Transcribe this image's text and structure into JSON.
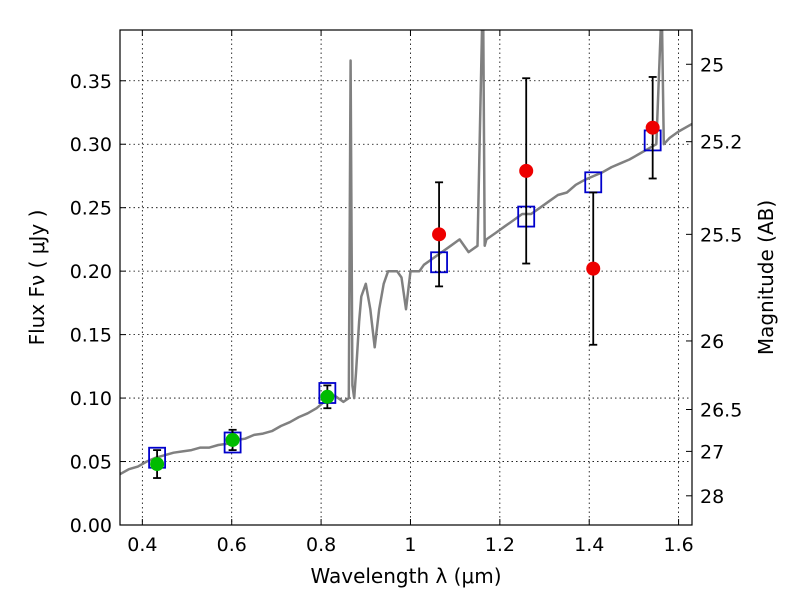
{
  "chart_data": {
    "type": "scatter",
    "xlabel": "Wavelength  λ (μm)",
    "ylabel": "Flux  Fν  ( μJy )",
    "y2label": "Magnitude (AB)",
    "xlim": [
      0.35,
      1.63
    ],
    "ylim": [
      0.0,
      0.39
    ],
    "grid": true,
    "x_ticks": [
      0.4,
      0.6,
      0.8,
      1.0,
      1.2,
      1.4,
      1.6
    ],
    "x_tick_labels": [
      "0.4",
      "0.6",
      "0.8",
      "1",
      "1.2",
      "1.4",
      "1.6"
    ],
    "y_ticks": [
      0.0,
      0.05,
      0.1,
      0.15,
      0.2,
      0.25,
      0.3,
      0.35
    ],
    "y_tick_labels": [
      "0.00",
      "0.05",
      "0.10",
      "0.15",
      "0.20",
      "0.25",
      "0.30",
      "0.35"
    ],
    "y2_ticks": [
      {
        "label": "25",
        "flux": 0.363
      },
      {
        "label": "25.2",
        "flux": 0.302
      },
      {
        "label": "25.5",
        "flux": 0.229
      },
      {
        "label": "26",
        "flux": 0.145
      },
      {
        "label": "26.5",
        "flux": 0.091
      },
      {
        "label": "27",
        "flux": 0.058
      },
      {
        "label": "28",
        "flux": 0.023
      }
    ],
    "colors": {
      "model": "#808080",
      "green_points": "#00bb00",
      "red_points": "#ee0000",
      "model_boxes": "#0000cc",
      "error_bars": "#000000"
    },
    "model_spectrum": {
      "x": [
        0.35,
        0.37,
        0.39,
        0.41,
        0.43,
        0.45,
        0.47,
        0.49,
        0.51,
        0.53,
        0.55,
        0.57,
        0.59,
        0.61,
        0.63,
        0.65,
        0.67,
        0.69,
        0.71,
        0.73,
        0.75,
        0.77,
        0.79,
        0.81,
        0.83,
        0.85,
        0.862,
        0.866,
        0.87,
        0.874,
        0.878,
        0.885,
        0.89,
        0.9,
        0.91,
        0.92,
        0.93,
        0.94,
        0.95,
        0.96,
        0.97,
        0.98,
        0.99,
        1.0,
        1.01,
        1.02,
        1.03,
        1.05,
        1.07,
        1.09,
        1.11,
        1.13,
        1.15,
        1.16,
        1.163,
        1.166,
        1.17,
        1.19,
        1.21,
        1.23,
        1.25,
        1.27,
        1.29,
        1.31,
        1.33,
        1.35,
        1.37,
        1.39,
        1.41,
        1.43,
        1.45,
        1.47,
        1.49,
        1.51,
        1.53,
        1.55,
        1.56,
        1.563,
        1.567,
        1.58,
        1.6,
        1.63
      ],
      "y": [
        0.04,
        0.044,
        0.046,
        0.05,
        0.053,
        0.055,
        0.057,
        0.058,
        0.059,
        0.061,
        0.061,
        0.063,
        0.064,
        0.067,
        0.068,
        0.071,
        0.072,
        0.074,
        0.078,
        0.081,
        0.085,
        0.088,
        0.092,
        0.098,
        0.102,
        0.097,
        0.1,
        0.366,
        0.11,
        0.1,
        0.12,
        0.16,
        0.18,
        0.19,
        0.17,
        0.14,
        0.17,
        0.19,
        0.2,
        0.2,
        0.2,
        0.195,
        0.17,
        0.2,
        0.2,
        0.2,
        0.205,
        0.21,
        0.215,
        0.22,
        0.225,
        0.215,
        0.22,
        0.39,
        0.39,
        0.22,
        0.225,
        0.23,
        0.235,
        0.24,
        0.245,
        0.245,
        0.25,
        0.255,
        0.26,
        0.262,
        0.268,
        0.272,
        0.275,
        0.278,
        0.282,
        0.285,
        0.288,
        0.292,
        0.296,
        0.3,
        0.39,
        0.39,
        0.3,
        0.305,
        0.31,
        0.316
      ]
    },
    "green_points": [
      {
        "x": 0.433,
        "y": 0.048,
        "err": 0.011
      },
      {
        "x": 0.602,
        "y": 0.067,
        "err": 0.008
      },
      {
        "x": 0.814,
        "y": 0.101,
        "err": 0.009
      }
    ],
    "red_points": [
      {
        "x": 1.064,
        "y": 0.229,
        "err": 0.041
      },
      {
        "x": 1.259,
        "y": 0.279,
        "err": 0.073
      },
      {
        "x": 1.409,
        "y": 0.202,
        "err": 0.06
      },
      {
        "x": 1.542,
        "y": 0.313,
        "err": 0.04
      }
    ],
    "model_boxes": [
      {
        "x": 0.433,
        "y": 0.053
      },
      {
        "x": 0.602,
        "y": 0.065
      },
      {
        "x": 0.814,
        "y": 0.104
      },
      {
        "x": 1.064,
        "y": 0.207
      },
      {
        "x": 1.259,
        "y": 0.243
      },
      {
        "x": 1.409,
        "y": 0.27
      },
      {
        "x": 1.542,
        "y": 0.303
      }
    ]
  }
}
